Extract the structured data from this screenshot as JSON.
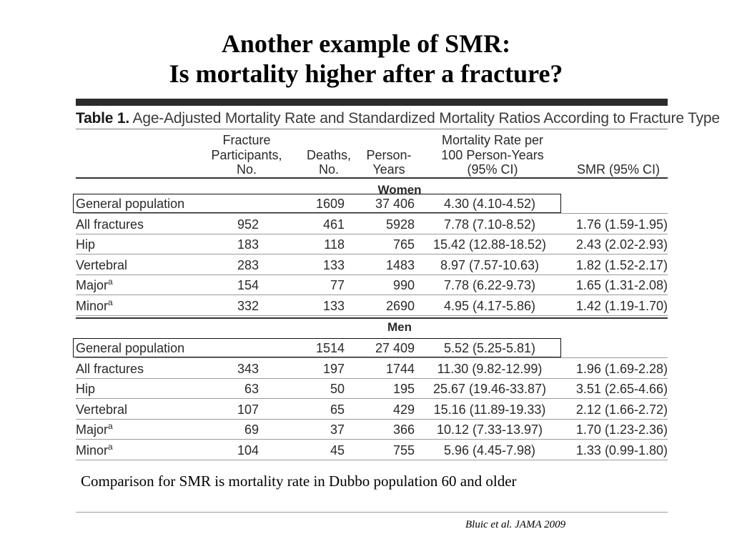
{
  "slide": {
    "title_line1": "Another example of SMR:",
    "title_line2": "Is mortality higher after a fracture?",
    "note": "Comparison for SMR is mortality rate in Dubbo population 60 and older",
    "citation": "Bluic et al. JAMA 2009"
  },
  "table": {
    "caption_label": "Table 1.",
    "caption_text": "Age-Adjusted Mortality Rate and Standardized Mortality Ratios According to Fracture Type",
    "headers": {
      "participants": [
        "Fracture",
        "Participants,",
        "No."
      ],
      "deaths": [
        "Deaths,",
        "No."
      ],
      "person_years": [
        "Person-",
        "Years"
      ],
      "rate": [
        "Mortality Rate per",
        "100 Person-Years",
        "(95% CI)"
      ],
      "smr": [
        "SMR (95% CI)"
      ]
    },
    "women_label": "Women",
    "men_label": "Men",
    "superscript": "a",
    "women": [
      {
        "name": "General population",
        "sup": false,
        "participants": "",
        "deaths": "1609",
        "person_years": "37 406",
        "rate": "4.30 (4.10-4.52)",
        "smr": ""
      },
      {
        "name": "All fractures",
        "sup": false,
        "participants": "952",
        "deaths": "461",
        "person_years": "5928",
        "rate": "7.78 (7.10-8.52)",
        "smr": "1.76 (1.59-1.95)"
      },
      {
        "name": "Hip",
        "sup": false,
        "participants": "183",
        "deaths": "118",
        "person_years": "765",
        "rate": "15.42 (12.88-18.52)",
        "smr": "2.43 (2.02-2.93)"
      },
      {
        "name": "Vertebral",
        "sup": false,
        "participants": "283",
        "deaths": "133",
        "person_years": "1483",
        "rate": "8.97 (7.57-10.63)",
        "smr": "1.82 (1.52-2.17)"
      },
      {
        "name": "Major",
        "sup": true,
        "participants": "154",
        "deaths": "77",
        "person_years": "990",
        "rate": "7.78 (6.22-9.73)",
        "smr": "1.65 (1.31-2.08)"
      },
      {
        "name": "Minor",
        "sup": true,
        "participants": "332",
        "deaths": "133",
        "person_years": "2690",
        "rate": "4.95 (4.17-5.86)",
        "smr": "1.42 (1.19-1.70)"
      }
    ],
    "men": [
      {
        "name": "General population",
        "sup": false,
        "participants": "",
        "deaths": "1514",
        "person_years": "27 409",
        "rate": "5.52 (5.25-5.81)",
        "smr": ""
      },
      {
        "name": "All fractures",
        "sup": false,
        "participants": "343",
        "deaths": "197",
        "person_years": "1744",
        "rate": "11.30 (9.82-12.99)",
        "smr": "1.96 (1.69-2.28)"
      },
      {
        "name": "Hip",
        "sup": false,
        "participants": "63",
        "deaths": "50",
        "person_years": "195",
        "rate": "25.67 (19.46-33.87)",
        "smr": "3.51 (2.65-4.66)"
      },
      {
        "name": "Vertebral",
        "sup": false,
        "participants": "107",
        "deaths": "65",
        "person_years": "429",
        "rate": "15.16 (11.89-19.33)",
        "smr": "2.12 (1.66-2.72)"
      },
      {
        "name": "Major",
        "sup": true,
        "participants": "69",
        "deaths": "37",
        "person_years": "366",
        "rate": "10.12 (7.33-13.97)",
        "smr": "1.70 (1.23-2.36)"
      },
      {
        "name": "Minor",
        "sup": true,
        "participants": "104",
        "deaths": "45",
        "person_years": "755",
        "rate": "5.96 (4.45-7.98)",
        "smr": "1.33 (0.99-1.80)"
      }
    ]
  }
}
